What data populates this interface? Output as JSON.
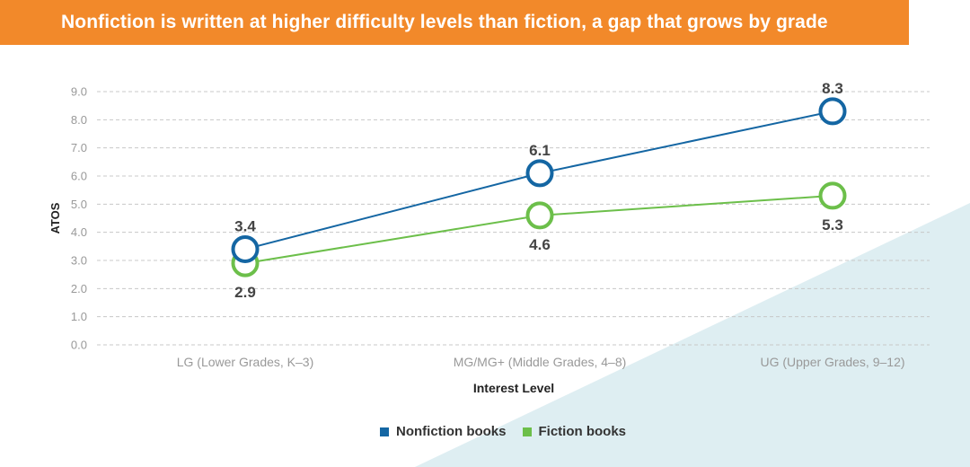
{
  "title": "Nonfiction is written at higher difficulty levels than fiction, a gap that grows by grade",
  "colors": {
    "banner": "#f2892a",
    "nonfiction": "#1466a3",
    "fiction": "#6cbf4a",
    "background_accent": "#deeef2",
    "grid": "#c8c8c8",
    "axis_text": "#999999",
    "value_text": "#444444"
  },
  "chart_data": {
    "type": "line",
    "title": "Nonfiction is written at higher difficulty levels than fiction, a gap that grows by grade",
    "xlabel": "Interest Level",
    "ylabel": "ATOS",
    "ylim": [
      0,
      9
    ],
    "yticks": [
      "0.0",
      "1.0",
      "2.0",
      "3.0",
      "4.0",
      "5.0",
      "6.0",
      "7.0",
      "8.0",
      "9.0"
    ],
    "categories": [
      "LG (Lower Grades, K–3)",
      "MG/MG+ (Middle Grades, 4–8)",
      "UG (Upper Grades, 9–12)"
    ],
    "grid": true,
    "legend_position": "bottom-center",
    "series": [
      {
        "name": "Nonfiction books",
        "values": [
          3.4,
          6.1,
          8.3
        ],
        "labels": [
          "3.4",
          "6.1",
          "8.3"
        ]
      },
      {
        "name": "Fiction books",
        "values": [
          2.9,
          4.6,
          5.3
        ],
        "labels": [
          "2.9",
          "4.6",
          "5.3"
        ]
      }
    ]
  },
  "legend": {
    "nonfiction_label": "Nonfiction books",
    "fiction_label": "Fiction books"
  }
}
